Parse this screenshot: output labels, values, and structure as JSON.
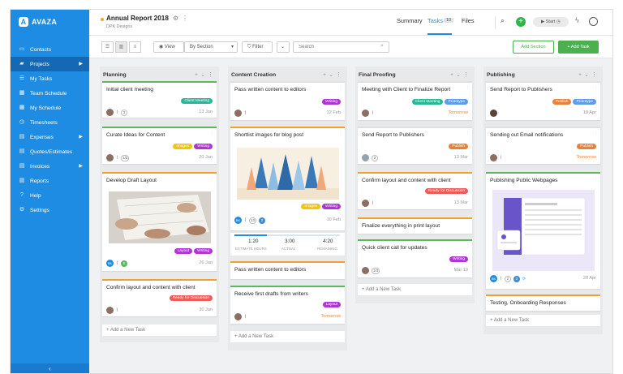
{
  "app": {
    "logo": "AVAZA"
  },
  "sidebar": {
    "items": [
      {
        "label": "Contacts",
        "icon": "contacts-icon",
        "glyph": "▭"
      },
      {
        "label": "Projects",
        "icon": "folder-icon",
        "glyph": "▰",
        "arrow": "▶"
      },
      {
        "label": "My Tasks",
        "icon": "tasks-icon",
        "glyph": "☰"
      },
      {
        "label": "Team Schedule",
        "icon": "schedule-icon",
        "glyph": "▦"
      },
      {
        "label": "My Schedule",
        "icon": "calendar-icon",
        "glyph": "▦"
      },
      {
        "label": "Timesheets",
        "icon": "clock-icon",
        "glyph": "◷"
      },
      {
        "label": "Expenses",
        "icon": "expenses-icon",
        "glyph": "▤",
        "arrow": "▶"
      },
      {
        "label": "Quotes/Estimates",
        "icon": "quotes-icon",
        "glyph": "▤"
      },
      {
        "label": "Invoices",
        "icon": "invoice-icon",
        "glyph": "▤",
        "arrow": "▶"
      },
      {
        "label": "Reports",
        "icon": "chart-icon",
        "glyph": "▥"
      },
      {
        "label": "Help",
        "icon": "help-icon",
        "glyph": "?"
      },
      {
        "label": "Settings",
        "icon": "gear-icon",
        "glyph": "⚙"
      }
    ],
    "collapse_glyph": "‹"
  },
  "header": {
    "title": "Annual Report 2018",
    "subtitle": "DPK Designs",
    "tabs": [
      {
        "label": "Summary"
      },
      {
        "label": "Tasks"
      },
      {
        "label": "Files"
      }
    ],
    "tasks_count": "10",
    "start_label": "Start"
  },
  "toolbar": {
    "view_label": "View",
    "group_by": "By Section",
    "filter_label": "Filter",
    "search_placeholder": "Search",
    "add_section": "Add Section",
    "add_task": "+ Add Task"
  },
  "colors": {
    "accent": "#1e8ce3",
    "tag_green": "#26b899",
    "tag_yellow": "#f2c40f",
    "tag_purple": "#b035d6",
    "tag_blue": "#5b9de8",
    "tag_orange": "#e8823a",
    "tag_red": "#ef5a5a",
    "tag_slate": "#6d8ebb"
  },
  "board": {
    "add_new_task": "+ Add a New Task",
    "columns": [
      {
        "title": "Planning",
        "cards": [
          {
            "title": "Initial client meeting",
            "tags": [
              {
                "text": "Client Meeting",
                "color": "#26b899"
              }
            ],
            "count": "3",
            "due": "13 Jan"
          },
          {
            "title": "Curate Ideas for Content",
            "tags": [
              {
                "text": "Images",
                "color": "#f2c40f"
              },
              {
                "text": "Writing",
                "color": "#b035d6"
              }
            ],
            "count": "1/3",
            "due": "20 Jan"
          },
          {
            "title": "Develop Draft Layout",
            "tags": [
              {
                "text": "Layout",
                "color": "#b035d6"
              },
              {
                "text": "Writing",
                "color": "#b035d6"
              }
            ],
            "avatar": "BK",
            "count": "5",
            "due": "26 Jan"
          },
          {
            "title": "Confirm layout and content with client",
            "tags": [
              {
                "text": "Ready for Discussion",
                "color": "#ef5a5a"
              }
            ],
            "due": "30 Jan"
          }
        ]
      },
      {
        "title": "Content Creation",
        "cards": [
          {
            "title": "Pass written content to editors",
            "tags": [
              {
                "text": "Writing",
                "color": "#b035d6"
              }
            ],
            "due": "12 Feb"
          },
          {
            "title": "Shortlist images for blog post",
            "tags": [
              {
                "text": "Images",
                "color": "#f2c40f"
              },
              {
                "text": "Writing",
                "color": "#b035d6"
              }
            ],
            "avatar": "BK",
            "count": "13",
            "count2": "2",
            "due": "19 Feb"
          },
          {
            "title": "Pass written content to editors"
          },
          {
            "title": "Receive first drafts from writers",
            "tags": [
              {
                "text": "Layout",
                "color": "#b035d6"
              }
            ],
            "due": "Tomorrow"
          }
        ],
        "stats": [
          {
            "value": "1:20",
            "label": "ESTIMATE HOURS"
          },
          {
            "value": "3:00",
            "label": "ACTUAL"
          },
          {
            "value": "4:20",
            "label": "REMAINING"
          }
        ]
      },
      {
        "title": "Final Proofing",
        "cards": [
          {
            "title": "Meeting with Client to Finalize Report",
            "tags": [
              {
                "text": "Client Meeting",
                "color": "#26b899"
              },
              {
                "text": "Prototype",
                "color": "#5b9de8"
              }
            ],
            "due": "Tomorrow"
          },
          {
            "title": "Send Report to Publishers",
            "tags": [
              {
                "text": "Publish",
                "color": "#e8823a"
              }
            ],
            "count": "2",
            "due": "13 Mar"
          },
          {
            "title": "Confirm layout and content with client",
            "tags": [
              {
                "text": "Ready for Discussion",
                "color": "#ef5a5a"
              }
            ],
            "due": "13 Mar"
          },
          {
            "title": "Finalize everything in print layout"
          },
          {
            "title": "Quick client call for updates",
            "tags": [
              {
                "text": "Writing",
                "color": "#b035d6"
              }
            ],
            "count": "1/3",
            "due": "Mar 19"
          }
        ]
      },
      {
        "title": "Publishing",
        "cards": [
          {
            "title": "Send Report to Publishers",
            "tags": [
              {
                "text": "Publish",
                "color": "#e8823a"
              },
              {
                "text": "Prototype",
                "color": "#5b9de8"
              }
            ],
            "due": "19 Apr"
          },
          {
            "title": "Sending out Email notifications",
            "tags": [
              {
                "text": "Publish",
                "color": "#e8823a"
              }
            ],
            "due": "Tomorrow"
          },
          {
            "title": "Publishing Public Webpages",
            "avatar": "BK",
            "count": "2",
            "count2": "3",
            "due": "20 Apr"
          },
          {
            "title": "Testing, Onboarding Responses"
          }
        ]
      }
    ]
  }
}
